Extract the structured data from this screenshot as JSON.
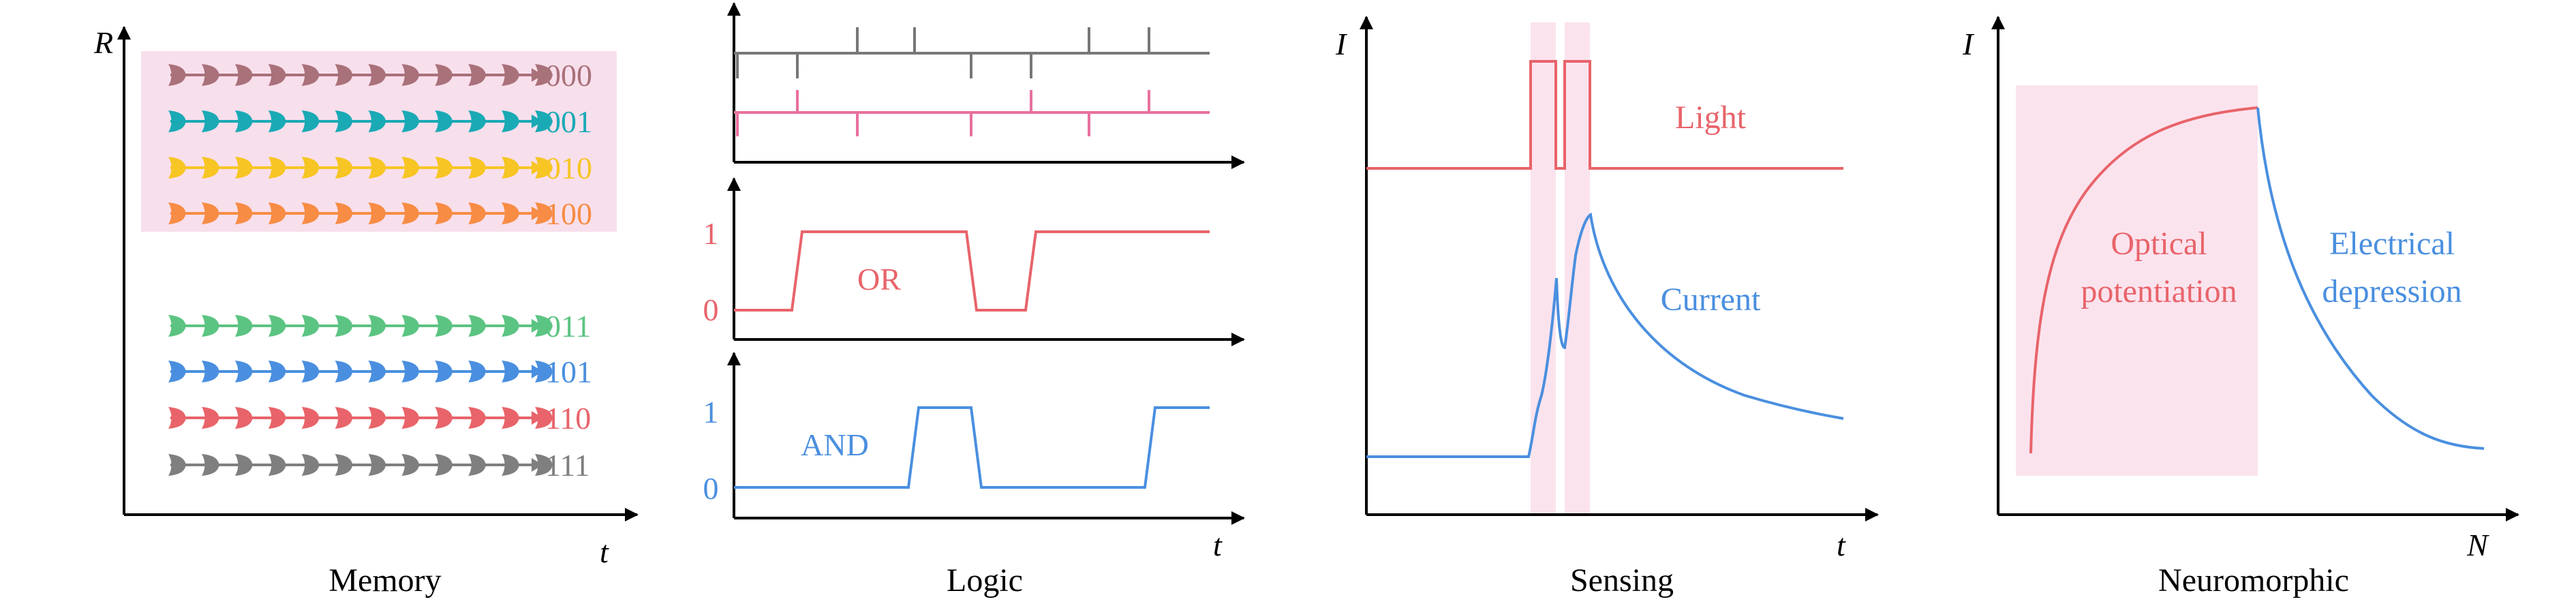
{
  "colors": {
    "axis": "#000000",
    "red": "#e8646a",
    "blue": "#4a8fdf",
    "gray": "#777777",
    "pink": "#e8709e",
    "highlight": "#fbe3ee",
    "mem_box": "#f8dfec"
  },
  "memory": {
    "caption": "Memory",
    "y_axis_label": "R",
    "x_axis_label": "t",
    "states": [
      {
        "code": "000",
        "color": "#a9717a"
      },
      {
        "code": "001",
        "color": "#1aaab5"
      },
      {
        "code": "010",
        "color": "#f7c524"
      },
      {
        "code": "100",
        "color": "#f78c44"
      },
      {
        "code": "011",
        "color": "#5cc482"
      },
      {
        "code": "101",
        "color": "#4a8fdf"
      },
      {
        "code": "110",
        "color": "#e8646a"
      },
      {
        "code": "111",
        "color": "#7f7f7f"
      }
    ]
  },
  "logic": {
    "caption": "Logic",
    "x_axis_label": "t",
    "or_label": "OR",
    "and_label": "AND",
    "tick_one": "1",
    "tick_zero": "0"
  },
  "sensing": {
    "caption": "Sensing",
    "y_axis_label": "I",
    "x_axis_label": "t",
    "light_label": "Light",
    "current_label": "Current"
  },
  "neuromorphic": {
    "caption": "Neuromorphic",
    "y_axis_label": "I",
    "x_axis_label": "N",
    "optical_line1": "Optical",
    "optical_line2": "potentiation",
    "electrical_line1": "Electrical",
    "electrical_line2": "depression"
  }
}
